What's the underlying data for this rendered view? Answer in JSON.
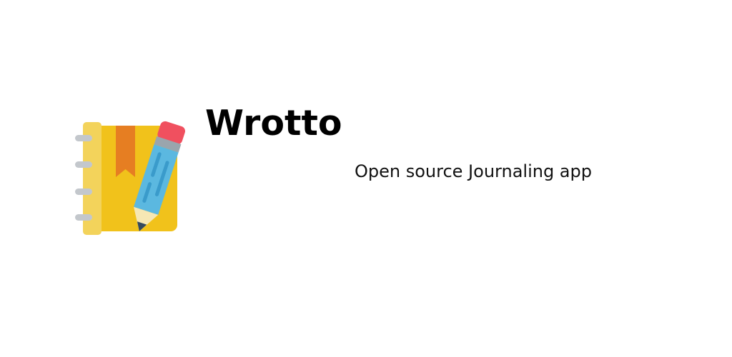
{
  "app": {
    "name": "Wrotto",
    "tagline": "Open source Journaling app"
  },
  "logo": {
    "icon": "journal-with-pencil-icon",
    "colors": {
      "cover": "#F1C21B",
      "spine": "#F3D35B",
      "bookmark": "#E67E22",
      "rings": "#C3C7CC",
      "pencil_body": "#5BB8E0",
      "pencil_stripe": "#3A9BCB",
      "pencil_ferrule": "#9AA5AD",
      "pencil_eraser": "#F0505F",
      "pencil_wood": "#F6E7B4",
      "pencil_tip": "#34495E"
    }
  }
}
